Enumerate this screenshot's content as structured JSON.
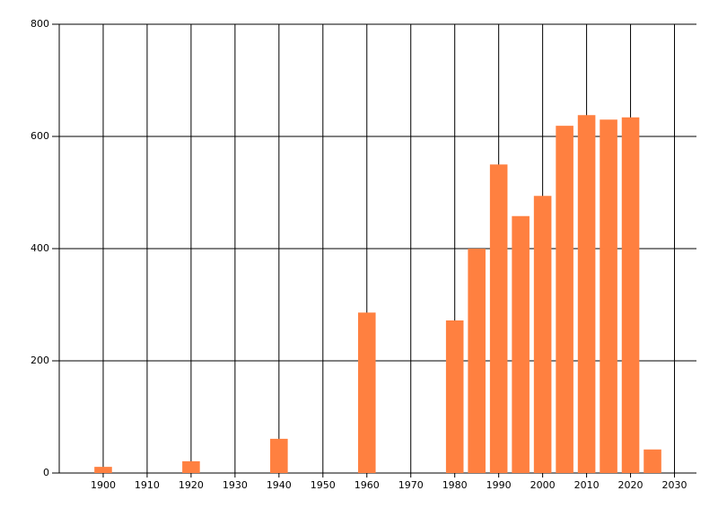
{
  "chart_data": {
    "type": "bar",
    "x": [
      1900,
      1920,
      1940,
      1960,
      1980,
      1985,
      1990,
      1995,
      2000,
      2005,
      2010,
      2015,
      2020,
      2025
    ],
    "values": [
      11,
      21,
      61,
      286,
      272,
      400,
      550,
      458,
      494,
      619,
      638,
      630,
      634,
      42
    ],
    "color": "#ff8040",
    "xlim": [
      1890,
      2035
    ],
    "xticks": [
      1900,
      1910,
      1920,
      1930,
      1940,
      1950,
      1960,
      1970,
      1980,
      1990,
      2000,
      2010,
      2020,
      2030
    ],
    "ylim": [
      0,
      800
    ],
    "yticks": [
      0,
      200,
      400,
      600,
      800
    ],
    "grid": true
  }
}
